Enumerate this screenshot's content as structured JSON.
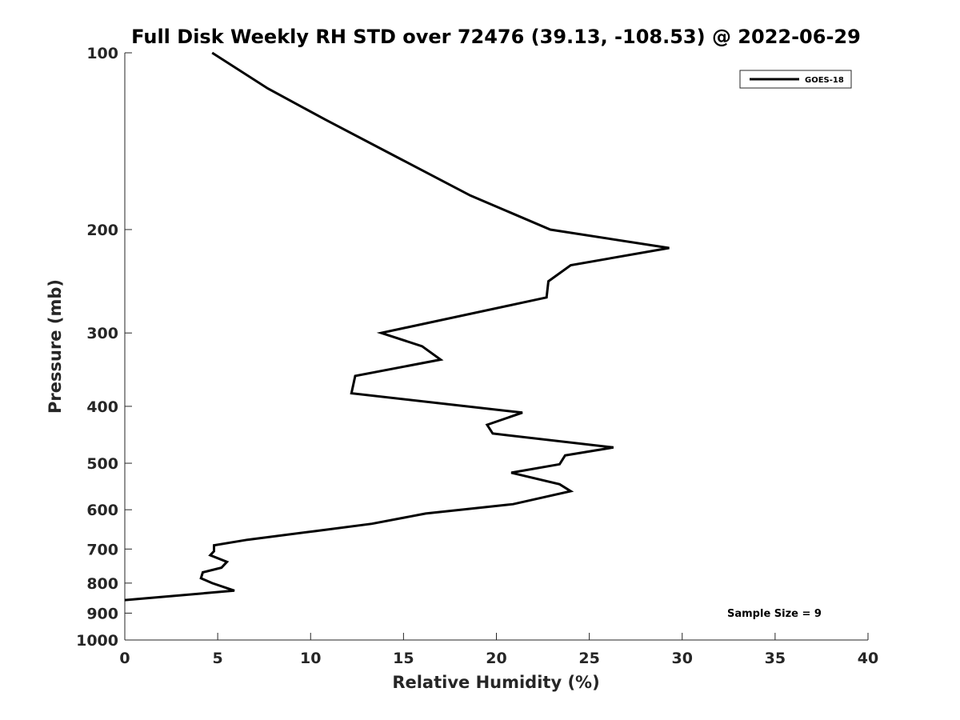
{
  "chart_data": {
    "type": "line",
    "title": "Full Disk Weekly RH STD over 72476 (39.13, -108.53) @ 2022-06-29",
    "xlabel": "Relative Humidity (%)",
    "ylabel": "Pressure (mb)",
    "xlim": [
      0,
      40
    ],
    "ylim": [
      100,
      1000
    ],
    "yscale": "log",
    "y_reversed": true,
    "grid": false,
    "legend_position": "top-right",
    "xticks": [
      0,
      5,
      10,
      15,
      20,
      25,
      30,
      35,
      40
    ],
    "xtick_labels": [
      "0",
      "5",
      "10",
      "15",
      "20",
      "25",
      "30",
      "35",
      "40"
    ],
    "yticks": [
      100,
      200,
      300,
      400,
      500,
      600,
      700,
      800,
      900,
      1000
    ],
    "ytick_labels": [
      "100",
      "200",
      "300",
      "400",
      "500",
      "600",
      "700",
      "800",
      "900",
      "1000"
    ],
    "series": [
      {
        "name": "GOES-18",
        "color": "#000000",
        "x": [
          4.7,
          7.7,
          10.8,
          14.9,
          18.6,
          22.9,
          29.3,
          24.0,
          22.8,
          22.7,
          13.8,
          16.0,
          17.0,
          12.4,
          12.2,
          21.4,
          19.5,
          19.8,
          26.3,
          23.7,
          23.4,
          20.8,
          23.4,
          24.0,
          20.9,
          16.2,
          13.3,
          10.3,
          6.6,
          4.8,
          4.8,
          4.6,
          5.5,
          5.2,
          4.2,
          4.1,
          4.7,
          5.9,
          0.0
        ],
        "y": [
          100,
          115,
          130,
          152,
          175,
          200,
          215,
          230,
          245,
          261,
          300,
          316,
          333,
          355,
          380,
          410,
          430,
          445,
          470,
          485,
          502,
          519,
          543,
          558,
          587,
          609,
          634,
          652,
          675,
          690,
          706,
          717,
          736,
          753,
          767,
          785,
          800,
          824,
          855
        ]
      }
    ],
    "annotations": [
      "Sample Size = 9"
    ]
  }
}
